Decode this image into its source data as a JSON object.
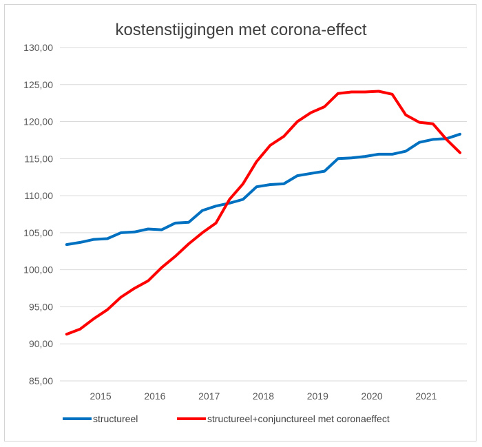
{
  "chart_data": {
    "type": "line",
    "title": "kostenstijgingen met corona-effect",
    "xlabel": "",
    "ylabel": "",
    "x_tick_labels": [
      "2015",
      "2016",
      "2017",
      "2018",
      "2019",
      "2020",
      "2021"
    ],
    "y_tick_labels": [
      "85,00",
      "90,00",
      "95,00",
      "100,00",
      "105,00",
      "110,00",
      "115,00",
      "120,00",
      "125,00",
      "130,00"
    ],
    "ylim": [
      85,
      130
    ],
    "xlim": [
      2014.375,
      2021.875
    ],
    "grid": true,
    "legend_position": "bottom",
    "series": [
      {
        "name": "structureel",
        "color": "#0070c0",
        "x": [
          2014.5,
          2014.75,
          2015.0,
          2015.25,
          2015.5,
          2015.75,
          2016.0,
          2016.25,
          2016.5,
          2016.75,
          2017.0,
          2017.25,
          2017.5,
          2017.75,
          2018.0,
          2018.25,
          2018.5,
          2018.75,
          2019.0,
          2019.25,
          2019.5,
          2019.75,
          2020.0,
          2020.25,
          2020.5,
          2020.75,
          2021.0,
          2021.25,
          2021.5,
          2021.75
        ],
        "values": [
          103.4,
          103.7,
          104.1,
          104.2,
          105.0,
          105.1,
          105.5,
          105.4,
          106.3,
          106.4,
          108.0,
          108.6,
          109.0,
          109.5,
          111.2,
          111.5,
          111.6,
          112.7,
          113.0,
          113.3,
          115.0,
          115.1,
          115.3,
          115.6,
          115.6,
          116.0,
          117.2,
          117.6,
          117.7,
          118.3
        ]
      },
      {
        "name": "structureel+conjunctureel met coronaeffect",
        "color": "#ff0000",
        "x": [
          2014.5,
          2014.75,
          2015.0,
          2015.25,
          2015.5,
          2015.75,
          2016.0,
          2016.25,
          2016.5,
          2016.75,
          2017.0,
          2017.25,
          2017.5,
          2017.75,
          2018.0,
          2018.25,
          2018.5,
          2018.75,
          2019.0,
          2019.25,
          2019.5,
          2019.75,
          2020.0,
          2020.25,
          2020.5,
          2020.75,
          2021.0,
          2021.25,
          2021.5,
          2021.75
        ],
        "values": [
          91.3,
          92.0,
          93.4,
          94.6,
          96.3,
          97.5,
          98.5,
          100.3,
          101.8,
          103.5,
          105.0,
          106.3,
          109.5,
          111.6,
          114.6,
          116.8,
          118.0,
          120.0,
          121.2,
          122.0,
          123.8,
          124.0,
          124.0,
          124.1,
          123.7,
          120.9,
          119.9,
          119.7,
          117.6,
          115.8
        ]
      }
    ]
  }
}
